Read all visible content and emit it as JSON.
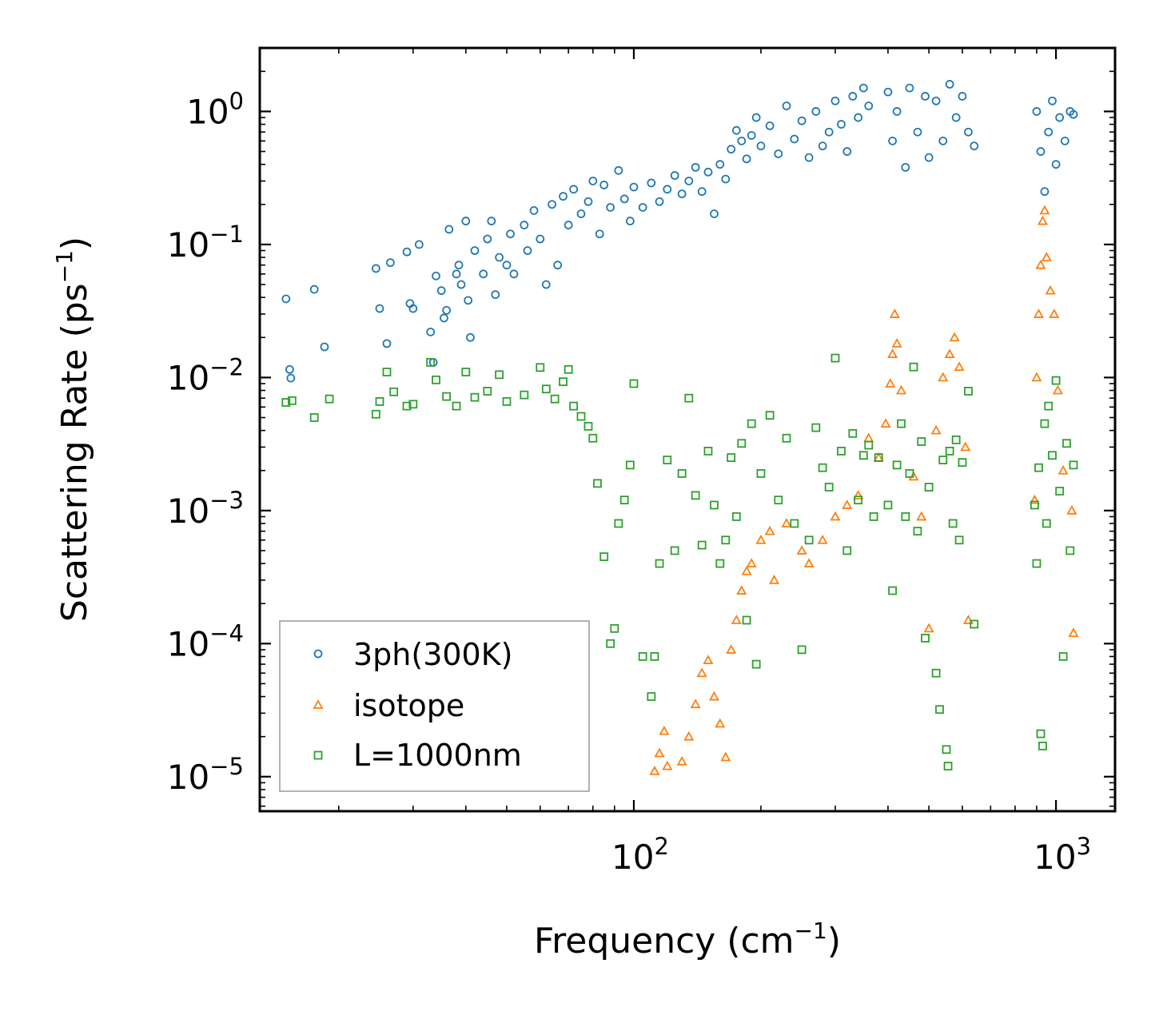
{
  "chart_data": {
    "type": "scatter",
    "title": "",
    "xlabel": {
      "prefix": "Frequency (cm",
      "sup": "−1",
      "suffix": ")"
    },
    "ylabel": {
      "prefix": "Scattering Rate (ps",
      "sup": "−1",
      "suffix": ")"
    },
    "xscale": "log",
    "yscale": "log",
    "xlim": [
      13,
      1380
    ],
    "ylim": [
      5.5e-06,
      3.0
    ],
    "xticks": [
      {
        "value": 100,
        "base": "10",
        "exp": "2"
      },
      {
        "value": 1000,
        "base": "10",
        "exp": "3"
      }
    ],
    "yticks": [
      {
        "value": 1,
        "base": "10",
        "exp": "0"
      },
      {
        "value": 0.1,
        "base": "10",
        "exp": "−1"
      },
      {
        "value": 0.01,
        "base": "10",
        "exp": "−2"
      },
      {
        "value": 0.001,
        "base": "10",
        "exp": "−3"
      },
      {
        "value": 0.0001,
        "base": "10",
        "exp": "−4"
      },
      {
        "value": 1e-05,
        "base": "10",
        "exp": "−5"
      }
    ],
    "legend_position": "lower-left",
    "series": [
      {
        "name": "3ph(300K)",
        "color": "#1f77b4",
        "marker": "circle",
        "points": [
          [
            15,
            0.039
          ],
          [
            15.3,
            0.0115
          ],
          [
            15.4,
            0.0099
          ],
          [
            17.5,
            0.046
          ],
          [
            18.5,
            0.017
          ],
          [
            24.5,
            0.066
          ],
          [
            25,
            0.033
          ],
          [
            26,
            0.018
          ],
          [
            26.5,
            0.073
          ],
          [
            29,
            0.088
          ],
          [
            29.5,
            0.036
          ],
          [
            30,
            0.033
          ],
          [
            31,
            0.1
          ],
          [
            33,
            0.022
          ],
          [
            33.5,
            0.013
          ],
          [
            34,
            0.058
          ],
          [
            35,
            0.045
          ],
          [
            35.5,
            0.028
          ],
          [
            36,
            0.032
          ],
          [
            36.5,
            0.13
          ],
          [
            38,
            0.06
          ],
          [
            38.5,
            0.07
          ],
          [
            39,
            0.05
          ],
          [
            40,
            0.15
          ],
          [
            40.5,
            0.038
          ],
          [
            41,
            0.02
          ],
          [
            42,
            0.09
          ],
          [
            44,
            0.06
          ],
          [
            45,
            0.11
          ],
          [
            46,
            0.15
          ],
          [
            47,
            0.042
          ],
          [
            48,
            0.08
          ],
          [
            50,
            0.07
          ],
          [
            51,
            0.12
          ],
          [
            52,
            0.06
          ],
          [
            55,
            0.14
          ],
          [
            56,
            0.09
          ],
          [
            58,
            0.18
          ],
          [
            60,
            0.11
          ],
          [
            62,
            0.05
          ],
          [
            64,
            0.2
          ],
          [
            66,
            0.07
          ],
          [
            68,
            0.23
          ],
          [
            70,
            0.14
          ],
          [
            72,
            0.26
          ],
          [
            75,
            0.17
          ],
          [
            78,
            0.21
          ],
          [
            80,
            0.3
          ],
          [
            83,
            0.12
          ],
          [
            85,
            0.28
          ],
          [
            88,
            0.19
          ],
          [
            92,
            0.36
          ],
          [
            95,
            0.22
          ],
          [
            98,
            0.15
          ],
          [
            100,
            0.27
          ],
          [
            105,
            0.19
          ],
          [
            110,
            0.29
          ],
          [
            115,
            0.21
          ],
          [
            120,
            0.26
          ],
          [
            125,
            0.33
          ],
          [
            130,
            0.24
          ],
          [
            135,
            0.3
          ],
          [
            140,
            0.38
          ],
          [
            145,
            0.25
          ],
          [
            150,
            0.35
          ],
          [
            155,
            0.17
          ],
          [
            160,
            0.4
          ],
          [
            165,
            0.31
          ],
          [
            170,
            0.52
          ],
          [
            175,
            0.72
          ],
          [
            180,
            0.6
          ],
          [
            185,
            0.44
          ],
          [
            190,
            0.66
          ],
          [
            195,
            0.9
          ],
          [
            200,
            0.55
          ],
          [
            210,
            0.78
          ],
          [
            220,
            0.48
          ],
          [
            230,
            1.1
          ],
          [
            240,
            0.62
          ],
          [
            250,
            0.85
          ],
          [
            260,
            0.45
          ],
          [
            270,
            1.0
          ],
          [
            280,
            0.55
          ],
          [
            290,
            0.7
          ],
          [
            300,
            1.2
          ],
          [
            310,
            0.8
          ],
          [
            320,
            0.5
          ],
          [
            330,
            1.3
          ],
          [
            340,
            0.9
          ],
          [
            350,
            1.5
          ],
          [
            360,
            1.1
          ],
          [
            400,
            1.4
          ],
          [
            410,
            0.6
          ],
          [
            420,
            1.0
          ],
          [
            440,
            0.38
          ],
          [
            450,
            1.5
          ],
          [
            470,
            0.7
          ],
          [
            490,
            1.3
          ],
          [
            500,
            0.45
          ],
          [
            520,
            1.2
          ],
          [
            540,
            0.6
          ],
          [
            560,
            1.6
          ],
          [
            580,
            0.9
          ],
          [
            600,
            1.3
          ],
          [
            620,
            0.7
          ],
          [
            640,
            0.55
          ],
          [
            900,
            1.0
          ],
          [
            920,
            0.5
          ],
          [
            940,
            0.25
          ],
          [
            960,
            0.7
          ],
          [
            980,
            1.2
          ],
          [
            1000,
            0.4
          ],
          [
            1020,
            0.9
          ],
          [
            1050,
            0.6
          ],
          [
            1080,
            1.0
          ],
          [
            1100,
            0.95
          ]
        ]
      },
      {
        "name": "isotope",
        "color": "#ff7f0e",
        "marker": "triangle",
        "points": [
          [
            112,
            1.1e-05
          ],
          [
            115,
            1.5e-05
          ],
          [
            118,
            2.2e-05
          ],
          [
            120,
            1.2e-05
          ],
          [
            130,
            1.3e-05
          ],
          [
            135,
            2e-05
          ],
          [
            140,
            3.5e-05
          ],
          [
            145,
            6e-05
          ],
          [
            150,
            7.5e-05
          ],
          [
            155,
            4e-05
          ],
          [
            160,
            2.5e-05
          ],
          [
            165,
            1.4e-05
          ],
          [
            170,
            9e-05
          ],
          [
            175,
            0.00015
          ],
          [
            180,
            0.00025
          ],
          [
            185,
            0.00035
          ],
          [
            190,
            0.0004
          ],
          [
            200,
            0.0006
          ],
          [
            210,
            0.0007
          ],
          [
            215,
            0.0003
          ],
          [
            230,
            0.0008
          ],
          [
            250,
            0.0005
          ],
          [
            260,
            0.0004
          ],
          [
            280,
            0.0006
          ],
          [
            300,
            0.0009
          ],
          [
            320,
            0.0011
          ],
          [
            340,
            0.0013
          ],
          [
            360,
            0.0035
          ],
          [
            380,
            0.0025
          ],
          [
            395,
            0.0045
          ],
          [
            405,
            0.009
          ],
          [
            410,
            0.015
          ],
          [
            415,
            0.03
          ],
          [
            420,
            0.018
          ],
          [
            430,
            0.008
          ],
          [
            460,
            0.0018
          ],
          [
            480,
            0.0009
          ],
          [
            500,
            0.00013
          ],
          [
            520,
            0.004
          ],
          [
            540,
            0.01
          ],
          [
            560,
            0.015
          ],
          [
            575,
            0.02
          ],
          [
            590,
            0.012
          ],
          [
            610,
            0.003
          ],
          [
            620,
            0.00015
          ],
          [
            890,
            0.0012
          ],
          [
            900,
            0.01
          ],
          [
            910,
            0.03
          ],
          [
            920,
            0.07
          ],
          [
            930,
            0.15
          ],
          [
            940,
            0.18
          ],
          [
            950,
            0.08
          ],
          [
            970,
            0.045
          ],
          [
            990,
            0.03
          ],
          [
            1010,
            0.008
          ],
          [
            1040,
            0.002
          ],
          [
            1090,
            0.001
          ],
          [
            1100,
            0.00012
          ]
        ]
      },
      {
        "name": "L=1000nm",
        "color": "#2ca02c",
        "marker": "square",
        "points": [
          [
            15,
            0.0065
          ],
          [
            15.5,
            0.0067
          ],
          [
            17.5,
            0.005
          ],
          [
            19,
            0.0069
          ],
          [
            24.5,
            0.0053
          ],
          [
            25,
            0.0066
          ],
          [
            26,
            0.011
          ],
          [
            27,
            0.0078
          ],
          [
            29,
            0.0061
          ],
          [
            30,
            0.0063
          ],
          [
            33,
            0.013
          ],
          [
            34,
            0.0096
          ],
          [
            36,
            0.0072
          ],
          [
            38,
            0.0061
          ],
          [
            40,
            0.011
          ],
          [
            42,
            0.0071
          ],
          [
            45,
            0.0079
          ],
          [
            48,
            0.0105
          ],
          [
            50,
            0.0066
          ],
          [
            55,
            0.0074
          ],
          [
            60,
            0.0119
          ],
          [
            62,
            0.0082
          ],
          [
            65,
            0.0069
          ],
          [
            68,
            0.0093
          ],
          [
            70,
            0.0115
          ],
          [
            72,
            0.0061
          ],
          [
            75,
            0.0051
          ],
          [
            78,
            0.0043
          ],
          [
            80,
            0.0035
          ],
          [
            82,
            0.0016
          ],
          [
            85,
            0.00045
          ],
          [
            88,
            0.0001
          ],
          [
            90,
            0.00013
          ],
          [
            92,
            0.0008
          ],
          [
            95,
            0.0012
          ],
          [
            98,
            0.0022
          ],
          [
            100,
            0.009
          ],
          [
            105,
            8e-05
          ],
          [
            110,
            4e-05
          ],
          [
            112,
            8e-05
          ],
          [
            115,
            0.0004
          ],
          [
            120,
            0.0024
          ],
          [
            125,
            0.0005
          ],
          [
            130,
            0.0019
          ],
          [
            135,
            0.007
          ],
          [
            140,
            0.0013
          ],
          [
            145,
            0.00055
          ],
          [
            150,
            0.0028
          ],
          [
            155,
            0.0011
          ],
          [
            160,
            0.0004
          ],
          [
            165,
            0.0006
          ],
          [
            170,
            0.0025
          ],
          [
            175,
            0.0009
          ],
          [
            180,
            0.0032
          ],
          [
            185,
            0.00015
          ],
          [
            190,
            0.0045
          ],
          [
            195,
            7e-05
          ],
          [
            200,
            0.0019
          ],
          [
            210,
            0.0052
          ],
          [
            220,
            0.0012
          ],
          [
            230,
            0.0035
          ],
          [
            240,
            0.0008
          ],
          [
            250,
            9e-05
          ],
          [
            260,
            0.0006
          ],
          [
            270,
            0.0042
          ],
          [
            280,
            0.0021
          ],
          [
            290,
            0.0015
          ],
          [
            300,
            0.014
          ],
          [
            310,
            0.0028
          ],
          [
            320,
            0.0005
          ],
          [
            330,
            0.0038
          ],
          [
            340,
            0.0012
          ],
          [
            350,
            0.0026
          ],
          [
            360,
            0.0031
          ],
          [
            370,
            0.0009
          ],
          [
            380,
            0.0025
          ],
          [
            400,
            0.0011
          ],
          [
            410,
            0.00025
          ],
          [
            420,
            0.0022
          ],
          [
            430,
            0.0045
          ],
          [
            440,
            0.0009
          ],
          [
            450,
            0.0019
          ],
          [
            460,
            0.012
          ],
          [
            470,
            0.0007
          ],
          [
            480,
            0.0033
          ],
          [
            490,
            0.00011
          ],
          [
            500,
            0.0015
          ],
          [
            520,
            6e-05
          ],
          [
            530,
            3.2e-05
          ],
          [
            540,
            0.0024
          ],
          [
            550,
            1.6e-05
          ],
          [
            555,
            1.2e-05
          ],
          [
            560,
            0.0028
          ],
          [
            570,
            0.0008
          ],
          [
            580,
            0.0034
          ],
          [
            590,
            0.0006
          ],
          [
            600,
            0.0023
          ],
          [
            620,
            0.0079
          ],
          [
            640,
            0.00014
          ],
          [
            890,
            0.0011
          ],
          [
            900,
            0.0004
          ],
          [
            910,
            0.0021
          ],
          [
            920,
            2.1e-05
          ],
          [
            930,
            1.7e-05
          ],
          [
            940,
            0.0045
          ],
          [
            950,
            0.0008
          ],
          [
            960,
            0.0061
          ],
          [
            980,
            0.0026
          ],
          [
            1000,
            0.0095
          ],
          [
            1020,
            0.0014
          ],
          [
            1040,
            8e-05
          ],
          [
            1060,
            0.0032
          ],
          [
            1080,
            0.0005
          ],
          [
            1100,
            0.0022
          ]
        ]
      }
    ]
  }
}
